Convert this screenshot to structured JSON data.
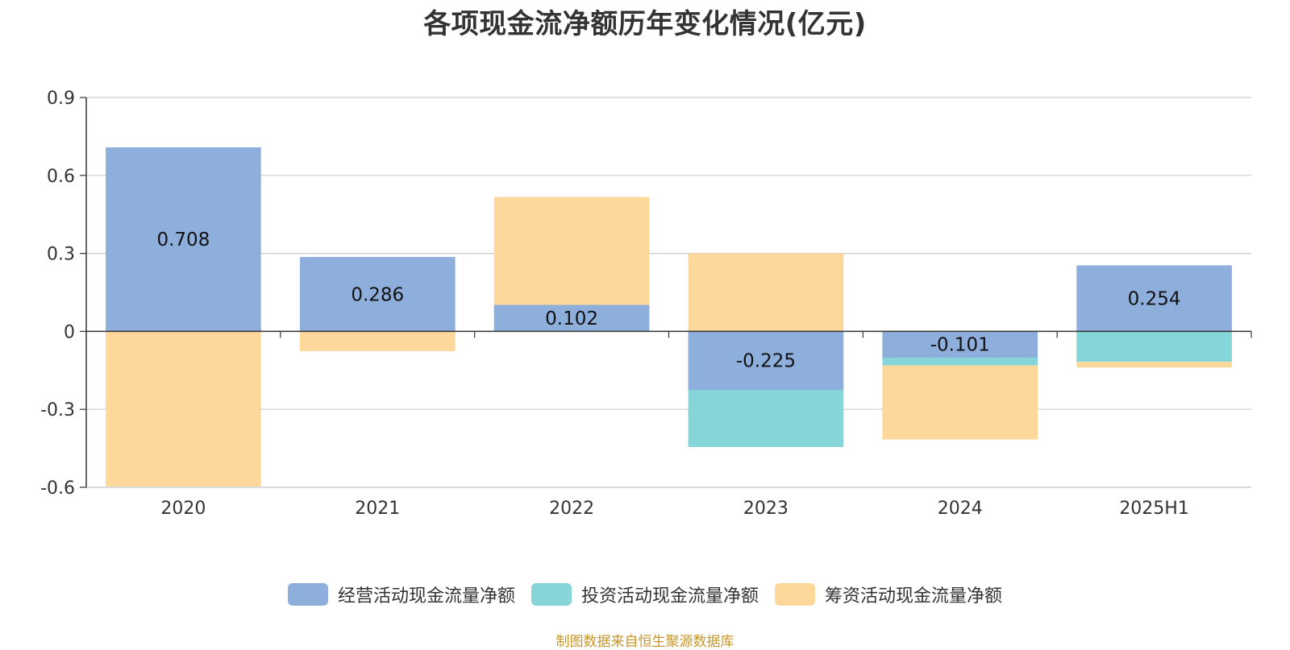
{
  "title": "各项现金流净额历年变化情况(亿元)",
  "source": "制图数据来自恒生聚源数据库",
  "chart_data": {
    "type": "bar",
    "stacked": true,
    "title": "各项现金流净额历年变化情况(亿元)",
    "categories": [
      "2020",
      "2021",
      "2022",
      "2023",
      "2024",
      "2025H1"
    ],
    "ylim": [
      -0.6,
      0.9
    ],
    "yticks": [
      0.9,
      0.6,
      0.3,
      0,
      -0.3,
      -0.6
    ],
    "ytick_labels": [
      "0.9",
      "0.6",
      "0.3",
      "0",
      "-0.3",
      "-0.6"
    ],
    "grid": true,
    "legend_position": "bottom",
    "series": [
      {
        "name": "经营活动现金流量净额",
        "color": "#8eaedc",
        "values": [
          0.708,
          0.286,
          0.102,
          -0.225,
          -0.101,
          0.254
        ],
        "labels": [
          "0.708",
          "0.286",
          "0.102",
          "-0.225",
          "-0.101",
          "0.254"
        ]
      },
      {
        "name": "投资活动现金流量净额",
        "color": "#86d5d8",
        "values": [
          0.0,
          0.0,
          -0.002,
          -0.22,
          -0.03,
          -0.117
        ],
        "labels": null
      },
      {
        "name": "筹资活动现金流量净额",
        "color": "#fdd89a",
        "values": [
          -0.597,
          -0.076,
          0.415,
          0.3,
          -0.285,
          -0.022
        ],
        "labels": null
      }
    ]
  }
}
